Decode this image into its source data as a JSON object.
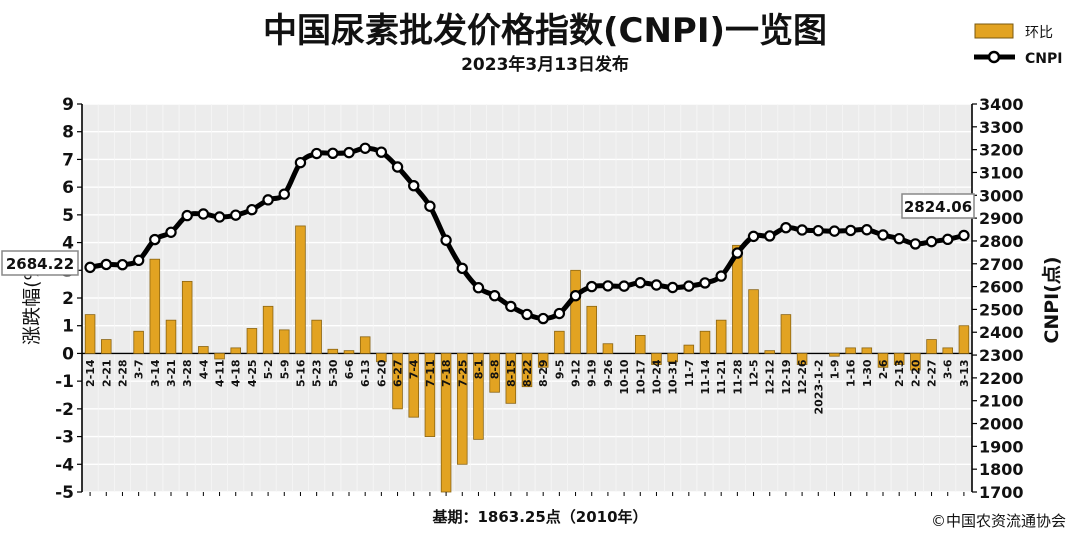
{
  "title": "中国尿素批发价格指数(CNPI)一览图",
  "subtitle": "2023年3月13日发布",
  "legend": [
    {
      "label": "环比",
      "type": "bar",
      "color": "#e2a322"
    },
    {
      "label": "CNPI",
      "type": "line",
      "color": "#000000"
    }
  ],
  "footer": {
    "base": "基期：1863.25点（2010年）",
    "copyright": "©中国农资流通协会"
  },
  "chart_data": {
    "type": "bar+line",
    "categories": [
      "2-14",
      "2-21",
      "2-28",
      "3-7",
      "3-14",
      "3-21",
      "3-28",
      "4-4",
      "4-11",
      "4-18",
      "4-25",
      "5-2",
      "5-9",
      "5-16",
      "5-23",
      "5-30",
      "6-6",
      "6-13",
      "6-20",
      "6-27",
      "7-4",
      "7-11",
      "7-18",
      "7-25",
      "8-1",
      "8-8",
      "8-15",
      "8-22",
      "8-29",
      "9-5",
      "9-12",
      "9-19",
      "9-26",
      "10-10",
      "10-17",
      "10-24",
      "10-31",
      "11-7",
      "11-14",
      "11-21",
      "11-28",
      "12-5",
      "12-12",
      "12-19",
      "12-26",
      "2023-1-2",
      "1-9",
      "1-16",
      "1-30",
      "2-6",
      "2-13",
      "2-20",
      "2-27",
      "3-6",
      "3-13"
    ],
    "y_left": {
      "label": "涨跌幅(%)",
      "ylim": [
        -5,
        9
      ],
      "ticks": [
        -5,
        -4,
        -3,
        -2,
        -1,
        0,
        1,
        2,
        3,
        4,
        5,
        6,
        7,
        8,
        9
      ]
    },
    "y_right": {
      "label": "CNPI(点)",
      "ylim": [
        1700,
        3400
      ],
      "ticks": [
        1700,
        1800,
        1900,
        2000,
        2100,
        2200,
        2300,
        2400,
        2500,
        2600,
        2700,
        2800,
        2900,
        3000,
        3100,
        3200,
        3300,
        3400
      ]
    },
    "grid": true,
    "legend_position": "top-right",
    "series": [
      {
        "name": "环比",
        "axis": "left",
        "type": "bar",
        "values": [
          1.4,
          0.5,
          0,
          0.8,
          3.4,
          1.2,
          2.6,
          0.25,
          -0.2,
          0.2,
          0.9,
          1.7,
          0.85,
          4.6,
          1.2,
          0.15,
          0.1,
          0.6,
          -0.3,
          -2.0,
          -2.3,
          -3.0,
          -5.0,
          -4.0,
          -3.1,
          -1.4,
          -1.8,
          -1.2,
          -0.5,
          0.8,
          3.0,
          1.7,
          0.35,
          0,
          0.65,
          -0.4,
          -0.3,
          0.3,
          0.8,
          1.2,
          3.9,
          2.3,
          0.1,
          1.4,
          -0.4,
          0,
          -0.1,
          0.2,
          0.2,
          -0.5,
          -0.4,
          -0.6,
          0.5,
          0.2,
          1.0
        ]
      },
      {
        "name": "CNPI",
        "axis": "right",
        "type": "line",
        "values": [
          2684.22,
          2697,
          2696,
          2715,
          2806,
          2838,
          2911,
          2918,
          2905,
          2913,
          2937,
          2980,
          3005,
          3143,
          3183,
          3184,
          3187,
          3206,
          3189,
          3124,
          3042,
          2952,
          2803,
          2680,
          2595,
          2560,
          2513,
          2478,
          2460,
          2482,
          2560,
          2600,
          2603,
          2602,
          2617,
          2607,
          2596,
          2602,
          2616,
          2646,
          2747,
          2820,
          2822,
          2858,
          2848,
          2845,
          2843,
          2846,
          2849,
          2826,
          2810,
          2787,
          2797,
          2807,
          2824.06
        ]
      }
    ],
    "annotations": [
      {
        "target": "2-14",
        "value": "2684.22"
      },
      {
        "target": "3-13",
        "value": "2824.06"
      }
    ]
  }
}
